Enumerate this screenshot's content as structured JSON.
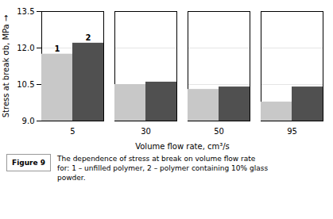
{
  "chart_data": {
    "type": "bar",
    "categories": [
      "5",
      "30",
      "50",
      "95"
    ],
    "series": [
      {
        "name": "1",
        "color": "#c8c8c8",
        "values": [
          11.75,
          10.5,
          10.3,
          9.78
        ]
      },
      {
        "name": "2",
        "color": "#505050",
        "values": [
          12.2,
          10.6,
          10.4,
          10.4
        ]
      }
    ],
    "xlabel": "Volume flow rate, cm³/s",
    "ylabel": "Stress at break σb, MPa",
    "ylim": [
      9.0,
      13.5
    ],
    "yticks": [
      {
        "value": 9.0,
        "label": "9.0"
      },
      10.5,
      {
        "value": 12.0,
        "label": "12.0"
      },
      13.5
    ],
    "grid": true,
    "annotations": [
      "Figure 9",
      "The dependence of stress at break on volume flow rate",
      "for: 1 – unfilled polymer, 2 – polymer containing 10% glass",
      "powder."
    ]
  }
}
